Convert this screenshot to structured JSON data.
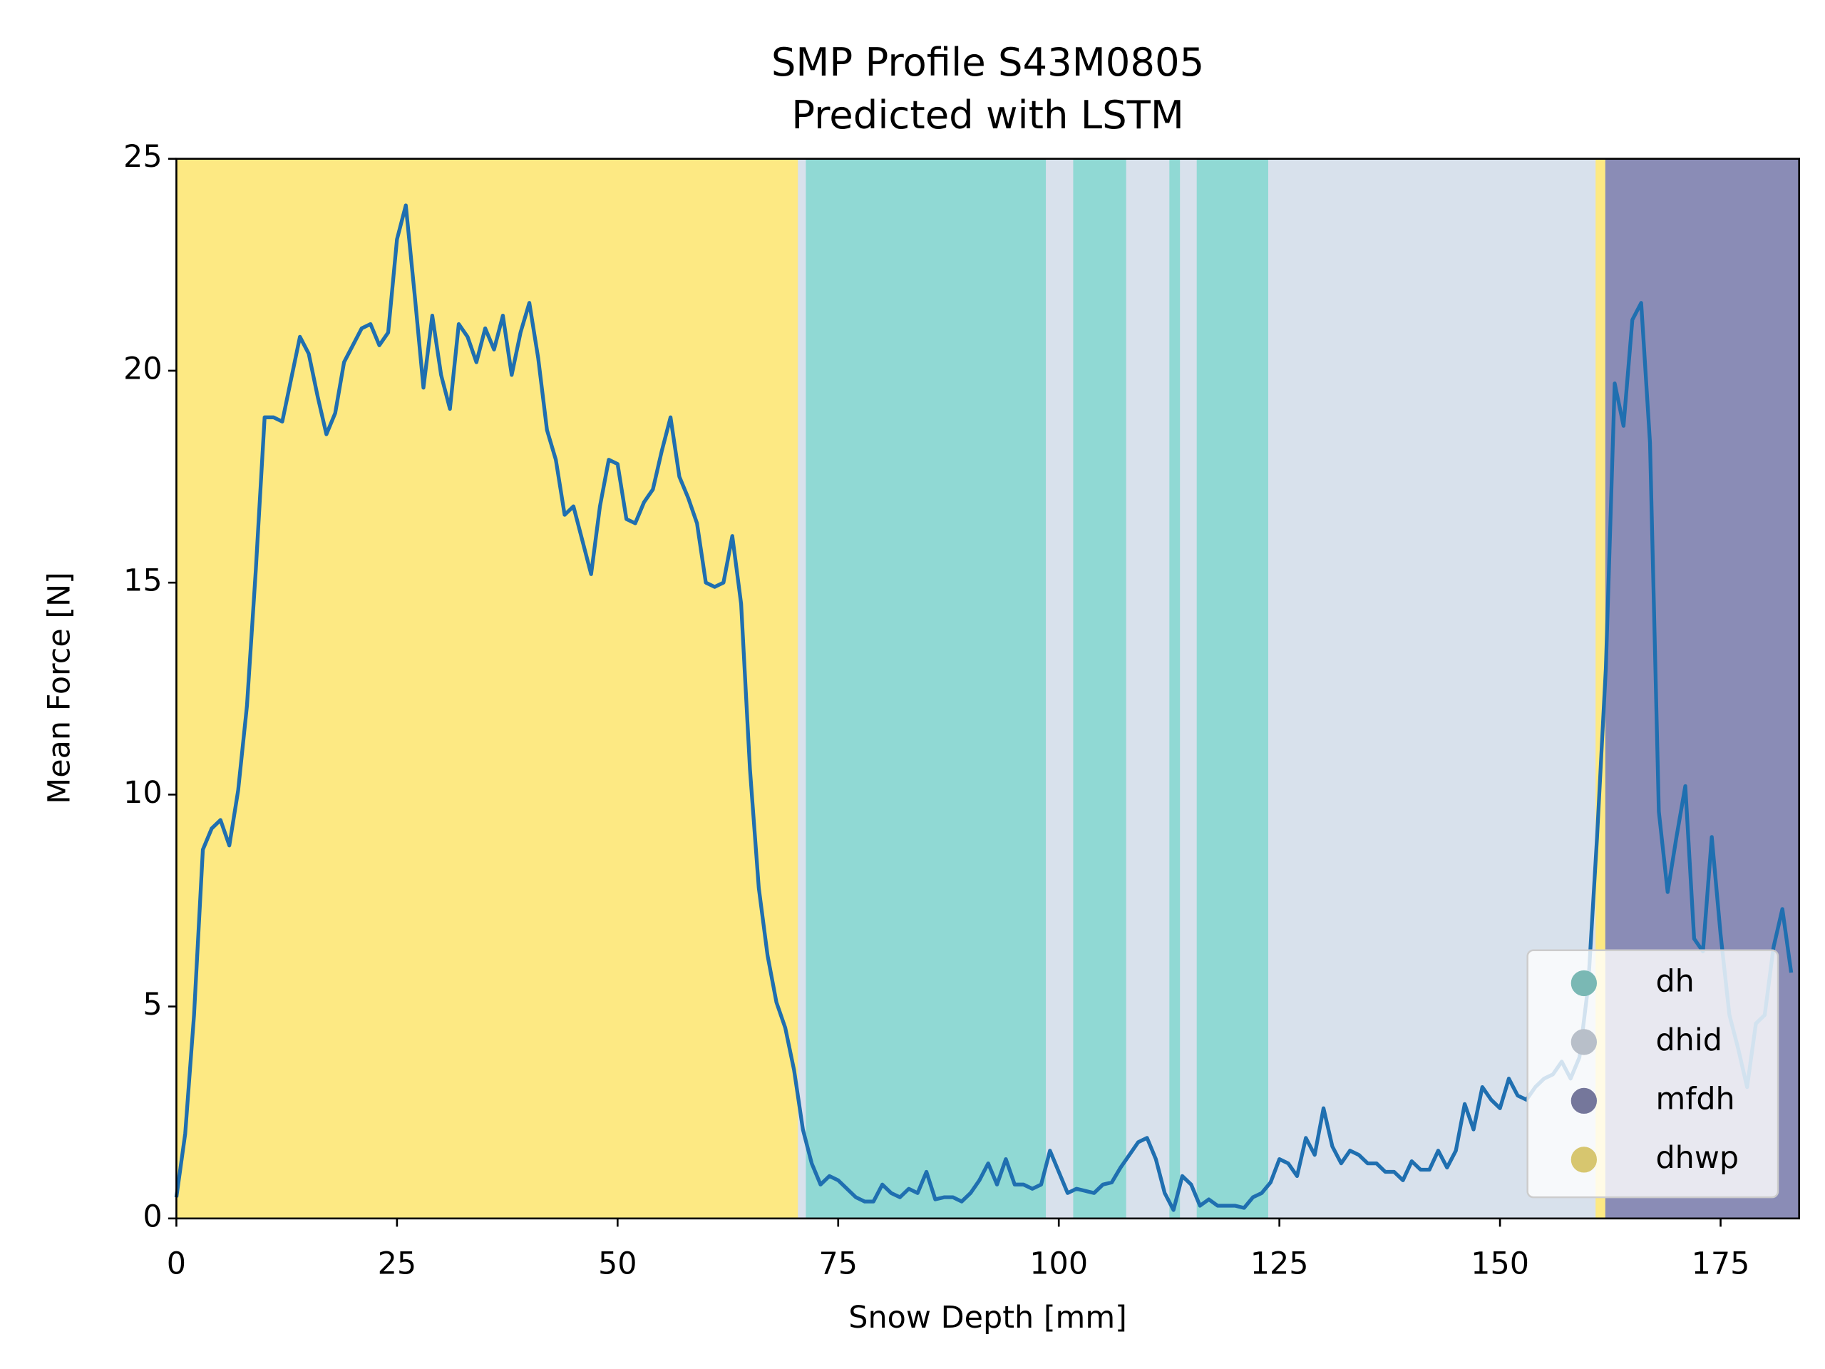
{
  "chart_data": {
    "type": "line",
    "title": "SMP Profile S43M0805",
    "subtitle": "Predicted with LSTM",
    "x_label": "Snow Depth [mm]",
    "y_label": "Mean Force [N]",
    "xlim": [
      0,
      183.9
    ],
    "ylim": [
      0,
      25
    ],
    "xticks": [
      0,
      25,
      50,
      75,
      100,
      125,
      150,
      175
    ],
    "yticks": [
      0,
      5,
      10,
      15,
      20,
      25
    ],
    "color": "#1f6fb0",
    "legend": {
      "loc": "lower right",
      "items": [
        {
          "name": "dh",
          "color": "#90d9d4"
        },
        {
          "name": "dhid",
          "color": "#d8e1ec"
        },
        {
          "name": "mfdh",
          "color": "#8a8cb6"
        },
        {
          "name": "dhwp",
          "color": "#fde983"
        }
      ]
    },
    "regions": [
      {
        "class": "dhwp",
        "start": 0,
        "end": 70.5
      },
      {
        "class": "dhid",
        "start": 70.5,
        "end": 71.4
      },
      {
        "class": "dh",
        "start": 71.4,
        "end": 98.6
      },
      {
        "class": "dhid",
        "start": 98.6,
        "end": 101.7
      },
      {
        "class": "dh",
        "start": 101.7,
        "end": 107.7
      },
      {
        "class": "dhid",
        "start": 107.7,
        "end": 112.6
      },
      {
        "class": "dh",
        "start": 112.6,
        "end": 113.8
      },
      {
        "class": "dhid",
        "start": 113.8,
        "end": 115.7
      },
      {
        "class": "dh",
        "start": 115.7,
        "end": 123.8
      },
      {
        "class": "dhid",
        "start": 123.8,
        "end": 160.9
      },
      {
        "class": "dhwp",
        "start": 160.9,
        "end": 162
      },
      {
        "class": "mfdh",
        "start": 162,
        "end": 183.9
      }
    ],
    "x": [
      0,
      1,
      2,
      3,
      4,
      5,
      6,
      7,
      8,
      9,
      10,
      11,
      12,
      13,
      14,
      15,
      16,
      17,
      18,
      19,
      20,
      21,
      22,
      23,
      24,
      25,
      26,
      27,
      28,
      29,
      30,
      31,
      32,
      33,
      34,
      35,
      36,
      37,
      38,
      39,
      40,
      41,
      42,
      43,
      44,
      45,
      46,
      47,
      48,
      49,
      50,
      51,
      52,
      53,
      54,
      55,
      56,
      57,
      58,
      59,
      60,
      61,
      62,
      63,
      64,
      65,
      66,
      67,
      68,
      69,
      70,
      71,
      72,
      73,
      74,
      75,
      76,
      77,
      78,
      79,
      80,
      81,
      82,
      83,
      84,
      85,
      86,
      87,
      88,
      89,
      90,
      91,
      92,
      93,
      94,
      95,
      96,
      97,
      98,
      99,
      100,
      101,
      102,
      103,
      104,
      105,
      106,
      107,
      108,
      109,
      110,
      111,
      112,
      113,
      114,
      115,
      116,
      117,
      118,
      119,
      120,
      121,
      122,
      123,
      124,
      125,
      126,
      127,
      128,
      129,
      130,
      131,
      132,
      133,
      134,
      135,
      136,
      137,
      138,
      139,
      140,
      141,
      142,
      143,
      144,
      145,
      146,
      147,
      148,
      149,
      150,
      151,
      152,
      153,
      154,
      155,
      156,
      157,
      158,
      159,
      160,
      161,
      162,
      163,
      164,
      165,
      166,
      167,
      168,
      169,
      170,
      171,
      172,
      173,
      174,
      175,
      176,
      177,
      178,
      179,
      180,
      181,
      182,
      183
    ],
    "values": [
      0.5,
      2,
      4.8,
      8.7,
      9.2,
      9.4,
      8.8,
      10.1,
      12.1,
      15.3,
      18.9,
      18.9,
      18.8,
      19.8,
      20.8,
      20.4,
      19.4,
      18.5,
      19,
      20.2,
      20.6,
      21,
      21.1,
      20.6,
      20.9,
      23.1,
      23.9,
      21.8,
      19.6,
      21.3,
      19.9,
      19.1,
      21.1,
      20.8,
      20.2,
      21,
      20.5,
      21.3,
      19.9,
      20.9,
      21.6,
      20.3,
      18.6,
      17.9,
      16.6,
      16.8,
      16,
      15.2,
      16.8,
      17.9,
      17.8,
      16.5,
      16.4,
      16.9,
      17.2,
      18.1,
      18.9,
      17.5,
      17,
      16.4,
      15,
      14.9,
      15,
      16.1,
      14.5,
      10.6,
      7.8,
      6.2,
      5.1,
      4.5,
      3.5,
      2.1,
      1.3,
      0.8,
      1,
      0.9,
      0.7,
      0.5,
      0.4,
      0.4,
      0.8,
      0.6,
      0.5,
      0.7,
      0.6,
      1.1,
      0.45,
      0.5,
      0.5,
      0.4,
      0.6,
      0.9,
      1.3,
      0.8,
      1.4,
      0.8,
      0.8,
      0.7,
      0.8,
      1.6,
      1.1,
      0.6,
      0.7,
      0.65,
      0.6,
      0.8,
      0.85,
      1.2,
      1.5,
      1.8,
      1.9,
      1.4,
      0.6,
      0.2,
      1,
      0.8,
      0.3,
      0.45,
      0.3,
      0.3,
      0.3,
      0.25,
      0.5,
      0.6,
      0.85,
      1.4,
      1.3,
      1,
      1.9,
      1.5,
      2.6,
      1.7,
      1.3,
      1.6,
      1.5,
      1.3,
      1.3,
      1.1,
      1.1,
      0.9,
      1.35,
      1.15,
      1.15,
      1.6,
      1.2,
      1.6,
      2.7,
      2.1,
      3.1,
      2.8,
      2.6,
      3.3,
      2.9,
      2.8,
      3.1,
      3.3,
      3.4,
      3.7,
      3.3,
      3.8,
      5.5,
      9,
      13,
      19.7,
      18.7,
      21.2,
      21.6,
      18.3,
      9.6,
      7.7,
      9,
      10.2,
      6.6,
      6.3,
      9,
      6.7,
      4.8,
      4,
      3.1,
      4.6,
      4.8,
      6.4,
      7.3,
      5.8
    ]
  }
}
